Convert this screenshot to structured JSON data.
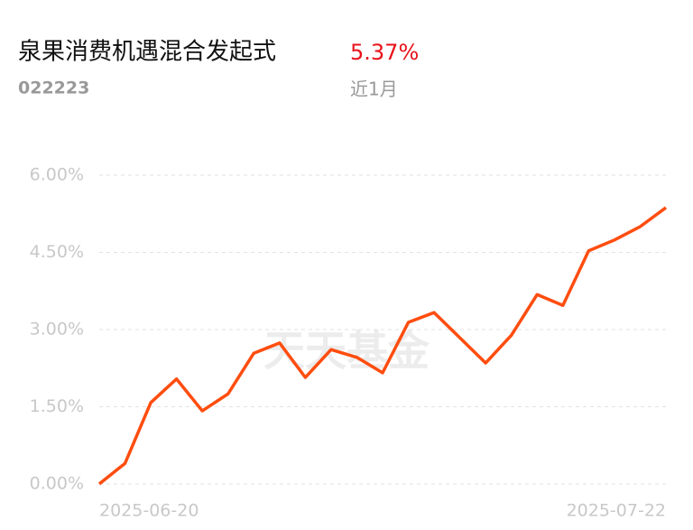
{
  "chart_data": {
    "type": "line",
    "title": "泉果消费机遇混合发起式",
    "return_label": "5.37%",
    "code": "022223",
    "period": "近1月",
    "watermark": "天天基金",
    "categories": [
      "2025-06-20",
      null,
      null,
      null,
      null,
      null,
      null,
      null,
      null,
      null,
      null,
      null,
      null,
      null,
      null,
      null,
      null,
      null,
      null,
      null,
      null,
      null,
      "2025-07-22"
    ],
    "series": [
      {
        "color": "#ff4d0f",
        "values": [
          0,
          0.4,
          1.58,
          2.04,
          1.42,
          1.75,
          2.54,
          2.74,
          2.07,
          2.61,
          2.46,
          2.16,
          3.14,
          3.33,
          2.84,
          2.35,
          2.89,
          3.68,
          3.47,
          4.53,
          4.74,
          5.0,
          5.37
        ]
      }
    ],
    "ylim": [
      0,
      6
    ],
    "yticks": [
      {
        "value": 0,
        "label": "0.00%"
      },
      {
        "value": 1.5,
        "label": "1.50%"
      },
      {
        "value": 3,
        "label": "3.00%"
      },
      {
        "value": 4.5,
        "label": "4.50%"
      },
      {
        "value": 6,
        "label": "6.00%"
      }
    ],
    "grid": true
  }
}
